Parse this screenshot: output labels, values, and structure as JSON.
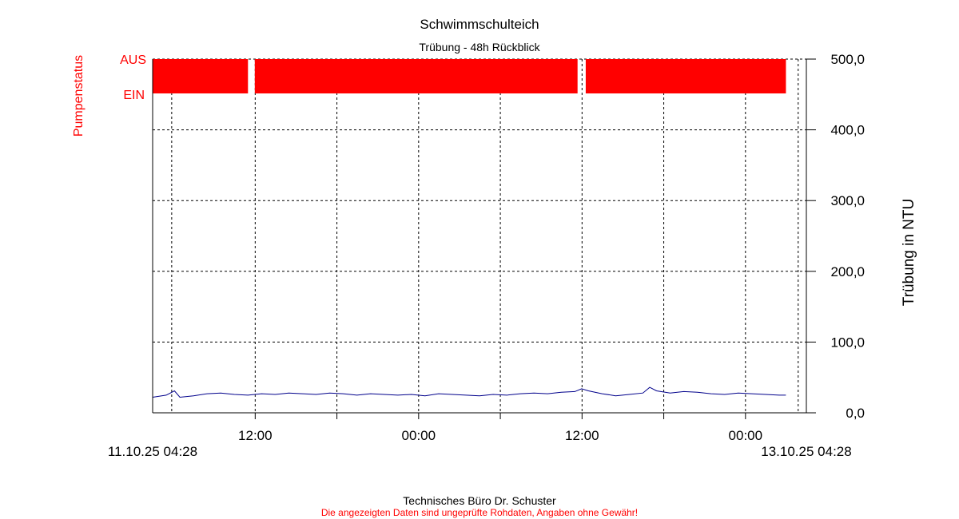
{
  "chart_data": {
    "type": "line",
    "title": "Schwimmschulteich",
    "subtitle": "Trübung - 48h Rückblick",
    "y_right": {
      "label": "Trübung in NTU",
      "range": [
        0,
        500
      ],
      "ticks": [
        0,
        100,
        200,
        300,
        400,
        500
      ],
      "tick_labels": [
        "0,0",
        "100,0",
        "200,0",
        "300,0",
        "400,0",
        "500,0"
      ]
    },
    "y_left": {
      "label": "Pumpenstatus",
      "states": [
        "AUS",
        "EIN"
      ]
    },
    "x": {
      "range_hours": [
        0,
        48
      ],
      "start_label": "11.10.25 04:28",
      "end_label": "13.10.25 04:28",
      "tick_hours": [
        7.53,
        19.53,
        31.53,
        43.53
      ],
      "tick_labels": [
        "12:00",
        "00:00",
        "12:00",
        "00:00"
      ],
      "minor_tick_hours": [
        13.53,
        25.53,
        37.53
      ]
    },
    "grid": true,
    "series": [
      {
        "name": "Trübung",
        "color": "#00008b",
        "x_hours": [
          0,
          1,
          1.6,
          2,
          3,
          4,
          5,
          6,
          7,
          8,
          9,
          10,
          11,
          12,
          13,
          14,
          15,
          16,
          17,
          18,
          19,
          20,
          21,
          22,
          23,
          24,
          25,
          26,
          27,
          28,
          29,
          30,
          31,
          31.5,
          32,
          33,
          34,
          35,
          36,
          36.5,
          37,
          38,
          39,
          40,
          41,
          42,
          43,
          44,
          45,
          46,
          46.5
        ],
        "values": [
          22,
          25,
          31,
          22,
          24,
          27,
          28,
          26,
          25,
          27,
          26,
          28,
          27,
          26,
          28,
          27,
          25,
          27,
          26,
          25,
          26,
          24,
          27,
          26,
          25,
          24,
          26,
          25,
          27,
          28,
          27,
          29,
          30,
          34,
          31,
          27,
          24,
          26,
          28,
          36,
          31,
          28,
          30,
          29,
          27,
          26,
          28,
          27,
          26,
          25,
          25
        ]
      }
    ],
    "pump_status": {
      "color": "#ff0000",
      "state": "EIN",
      "on_intervals_hours": [
        [
          0,
          7.0
        ],
        [
          7.5,
          31.2
        ],
        [
          31.8,
          46.5
        ]
      ]
    }
  },
  "footer": {
    "line1": "Technisches Büro Dr. Schuster",
    "line2": "Die angezeigten Daten sind ungeprüfte Rohdaten, Angaben ohne Gewähr!",
    "line2_color": "#ff0000"
  }
}
